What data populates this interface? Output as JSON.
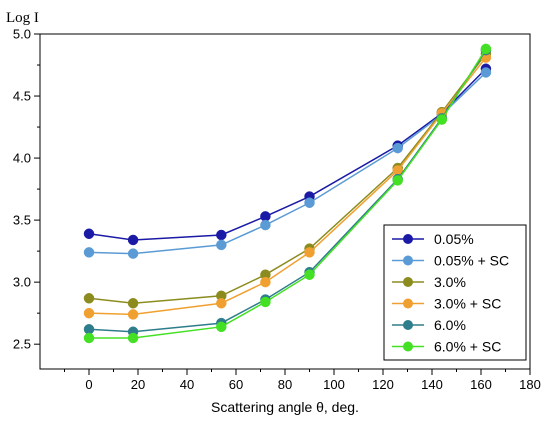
{
  "chart_data": {
    "type": "line",
    "xlabel": "Scattering angle θ, deg.",
    "ylabel": "Log I",
    "xlim": [
      -20,
      180
    ],
    "ylim": [
      2.3,
      5.0
    ],
    "xticks": [
      0,
      20,
      40,
      60,
      80,
      100,
      120,
      140,
      160,
      180
    ],
    "yticks": [
      2.5,
      3.0,
      3.5,
      4.0,
      4.5,
      5.0
    ],
    "ytick_labels": [
      "2.5",
      "3.0",
      "3.5",
      "4.0",
      "4.5",
      "5.0"
    ],
    "legend_position": "bottom-right",
    "x": [
      0,
      18,
      54,
      72,
      90,
      126,
      144,
      162
    ],
    "series": [
      {
        "name": "0.05%",
        "color": "#1a1aa6",
        "values": [
          3.39,
          3.34,
          3.38,
          3.53,
          3.69,
          4.1,
          4.36,
          4.72
        ]
      },
      {
        "name": "0.05% + SC",
        "color": "#5b9bd5",
        "values": [
          3.24,
          3.23,
          3.3,
          3.46,
          3.64,
          4.08,
          4.35,
          4.69
        ]
      },
      {
        "name": "3.0%",
        "color": "#8c8c1e",
        "values": [
          2.87,
          2.83,
          2.89,
          3.06,
          3.27,
          3.92,
          4.37,
          4.84
        ]
      },
      {
        "name": "3.0% + SC",
        "color": "#f0a030",
        "values": [
          2.75,
          2.74,
          2.83,
          3.0,
          3.24,
          3.9,
          4.36,
          4.81
        ]
      },
      {
        "name": "6.0%",
        "color": "#2e7d8c",
        "values": [
          2.62,
          2.6,
          2.67,
          2.86,
          3.08,
          3.83,
          4.32,
          4.87
        ]
      },
      {
        "name": "6.0% + SC",
        "color": "#44e024",
        "values": [
          2.55,
          2.55,
          2.64,
          2.84,
          3.06,
          3.82,
          4.31,
          4.88
        ]
      }
    ]
  }
}
